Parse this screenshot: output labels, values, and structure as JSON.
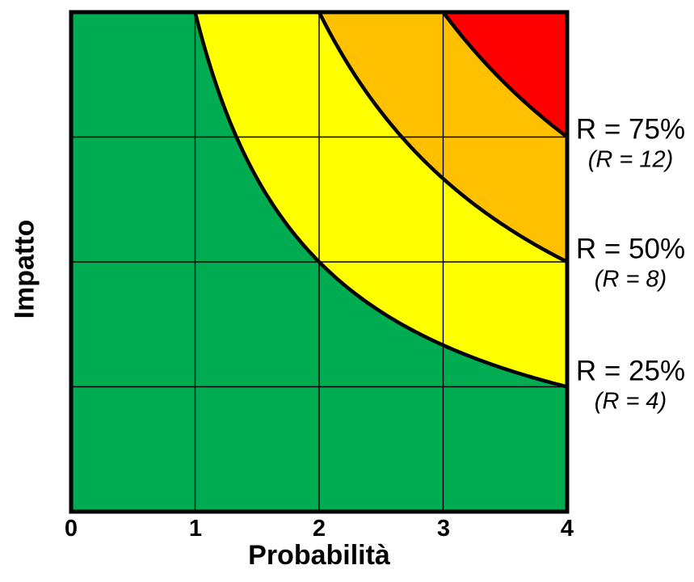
{
  "chart_data": {
    "type": "area",
    "title": "",
    "xlabel": "Probabilità",
    "ylabel": "Impatto",
    "xlim": [
      0,
      4
    ],
    "ylim": [
      0,
      4
    ],
    "x_ticks": [
      "0",
      "1",
      "2",
      "3",
      "4"
    ],
    "grid": true,
    "base_region": {
      "name": "low-risk",
      "color": "#00AC52"
    },
    "curves": [
      {
        "r_value": 4,
        "label_pct": "R = 25%",
        "label_abs": "(R = 4)",
        "color": "#FFFF00"
      },
      {
        "r_value": 8,
        "label_pct": "R = 50%",
        "label_abs": "(R = 8)",
        "color": "#FFC000"
      },
      {
        "r_value": 12,
        "label_pct": "R = 75%",
        "label_abs": "(R = 12)",
        "color": "#FF0000"
      }
    ],
    "curve_color": "#000000",
    "border_color": "#000000",
    "grid_color": "#000000",
    "notes": "Iso-risk hyperbolas R = Probabilità × Impatto; regions filled green, yellow, orange, red"
  }
}
